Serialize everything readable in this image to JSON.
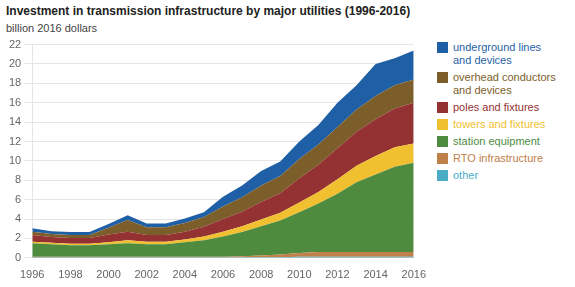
{
  "chart_data": {
    "type": "area",
    "title": "Investment in transmission infrastructure by major utilities (1996-2016)",
    "ylabel": "billion 2016 dollars",
    "x": [
      1996,
      1997,
      1998,
      1999,
      2000,
      2001,
      2002,
      2003,
      2004,
      2005,
      2006,
      2007,
      2008,
      2009,
      2010,
      2011,
      2012,
      2013,
      2014,
      2015,
      2016
    ],
    "series": [
      {
        "name": "other",
        "color": "#4bacc6",
        "values": [
          0.05,
          0.05,
          0.05,
          0.05,
          0.05,
          0.05,
          0.05,
          0.05,
          0.05,
          0.05,
          0.05,
          0.05,
          0.05,
          0.05,
          0.1,
          0.1,
          0.1,
          0.1,
          0.1,
          0.1,
          0.1
        ]
      },
      {
        "name": "RTO infrastructure",
        "color": "#c0804a",
        "values": [
          0.05,
          0.05,
          0.05,
          0.05,
          0.05,
          0.05,
          0.05,
          0.05,
          0.05,
          0.05,
          0.05,
          0.1,
          0.2,
          0.3,
          0.4,
          0.5,
          0.5,
          0.5,
          0.5,
          0.5,
          0.5
        ]
      },
      {
        "name": "station equipment",
        "color": "#4e8b3f",
        "values": [
          1.4,
          1.3,
          1.2,
          1.2,
          1.3,
          1.4,
          1.3,
          1.3,
          1.5,
          1.7,
          2.1,
          2.5,
          3.0,
          3.5,
          4.2,
          5.0,
          6.0,
          7.2,
          8.0,
          8.8,
          9.2
        ]
      },
      {
        "name": "towers and fixtures",
        "color": "#f0c030",
        "values": [
          0.15,
          0.15,
          0.15,
          0.15,
          0.2,
          0.3,
          0.25,
          0.25,
          0.3,
          0.4,
          0.5,
          0.6,
          0.7,
          0.8,
          1.0,
          1.2,
          1.5,
          1.7,
          1.9,
          2.0,
          2.0
        ]
      },
      {
        "name": "poles and fixtures",
        "color": "#943233",
        "values": [
          0.7,
          0.6,
          0.6,
          0.6,
          0.8,
          0.9,
          0.7,
          0.7,
          0.8,
          1.0,
          1.3,
          1.5,
          1.8,
          2.0,
          2.5,
          2.8,
          3.2,
          3.5,
          3.8,
          4.0,
          4.2
        ]
      },
      {
        "name": "overhead conductors\nand devices",
        "color": "#7b5e2a",
        "values": [
          0.35,
          0.3,
          0.3,
          0.3,
          0.7,
          1.2,
          0.8,
          0.8,
          0.9,
          1.0,
          1.3,
          1.5,
          1.7,
          1.8,
          2.0,
          2.1,
          2.2,
          2.3,
          2.4,
          2.4,
          2.4
        ]
      },
      {
        "name": "underground lines\nand devices",
        "color": "#1f5fa6",
        "values": [
          0.35,
          0.3,
          0.3,
          0.3,
          0.4,
          0.5,
          0.4,
          0.4,
          0.45,
          0.5,
          1.0,
          1.2,
          1.5,
          1.5,
          1.8,
          2.0,
          2.5,
          2.5,
          3.3,
          2.8,
          3.0
        ]
      }
    ],
    "xlim": [
      1996,
      2016
    ],
    "xticks": [
      1996,
      1998,
      2000,
      2002,
      2004,
      2006,
      2008,
      2010,
      2012,
      2014,
      2016
    ],
    "ylim": [
      0,
      22
    ],
    "yticks": [
      0,
      2,
      4,
      6,
      8,
      10,
      12,
      14,
      16,
      18,
      20,
      22
    ],
    "grid": true,
    "stacked": true,
    "legend": "right"
  }
}
